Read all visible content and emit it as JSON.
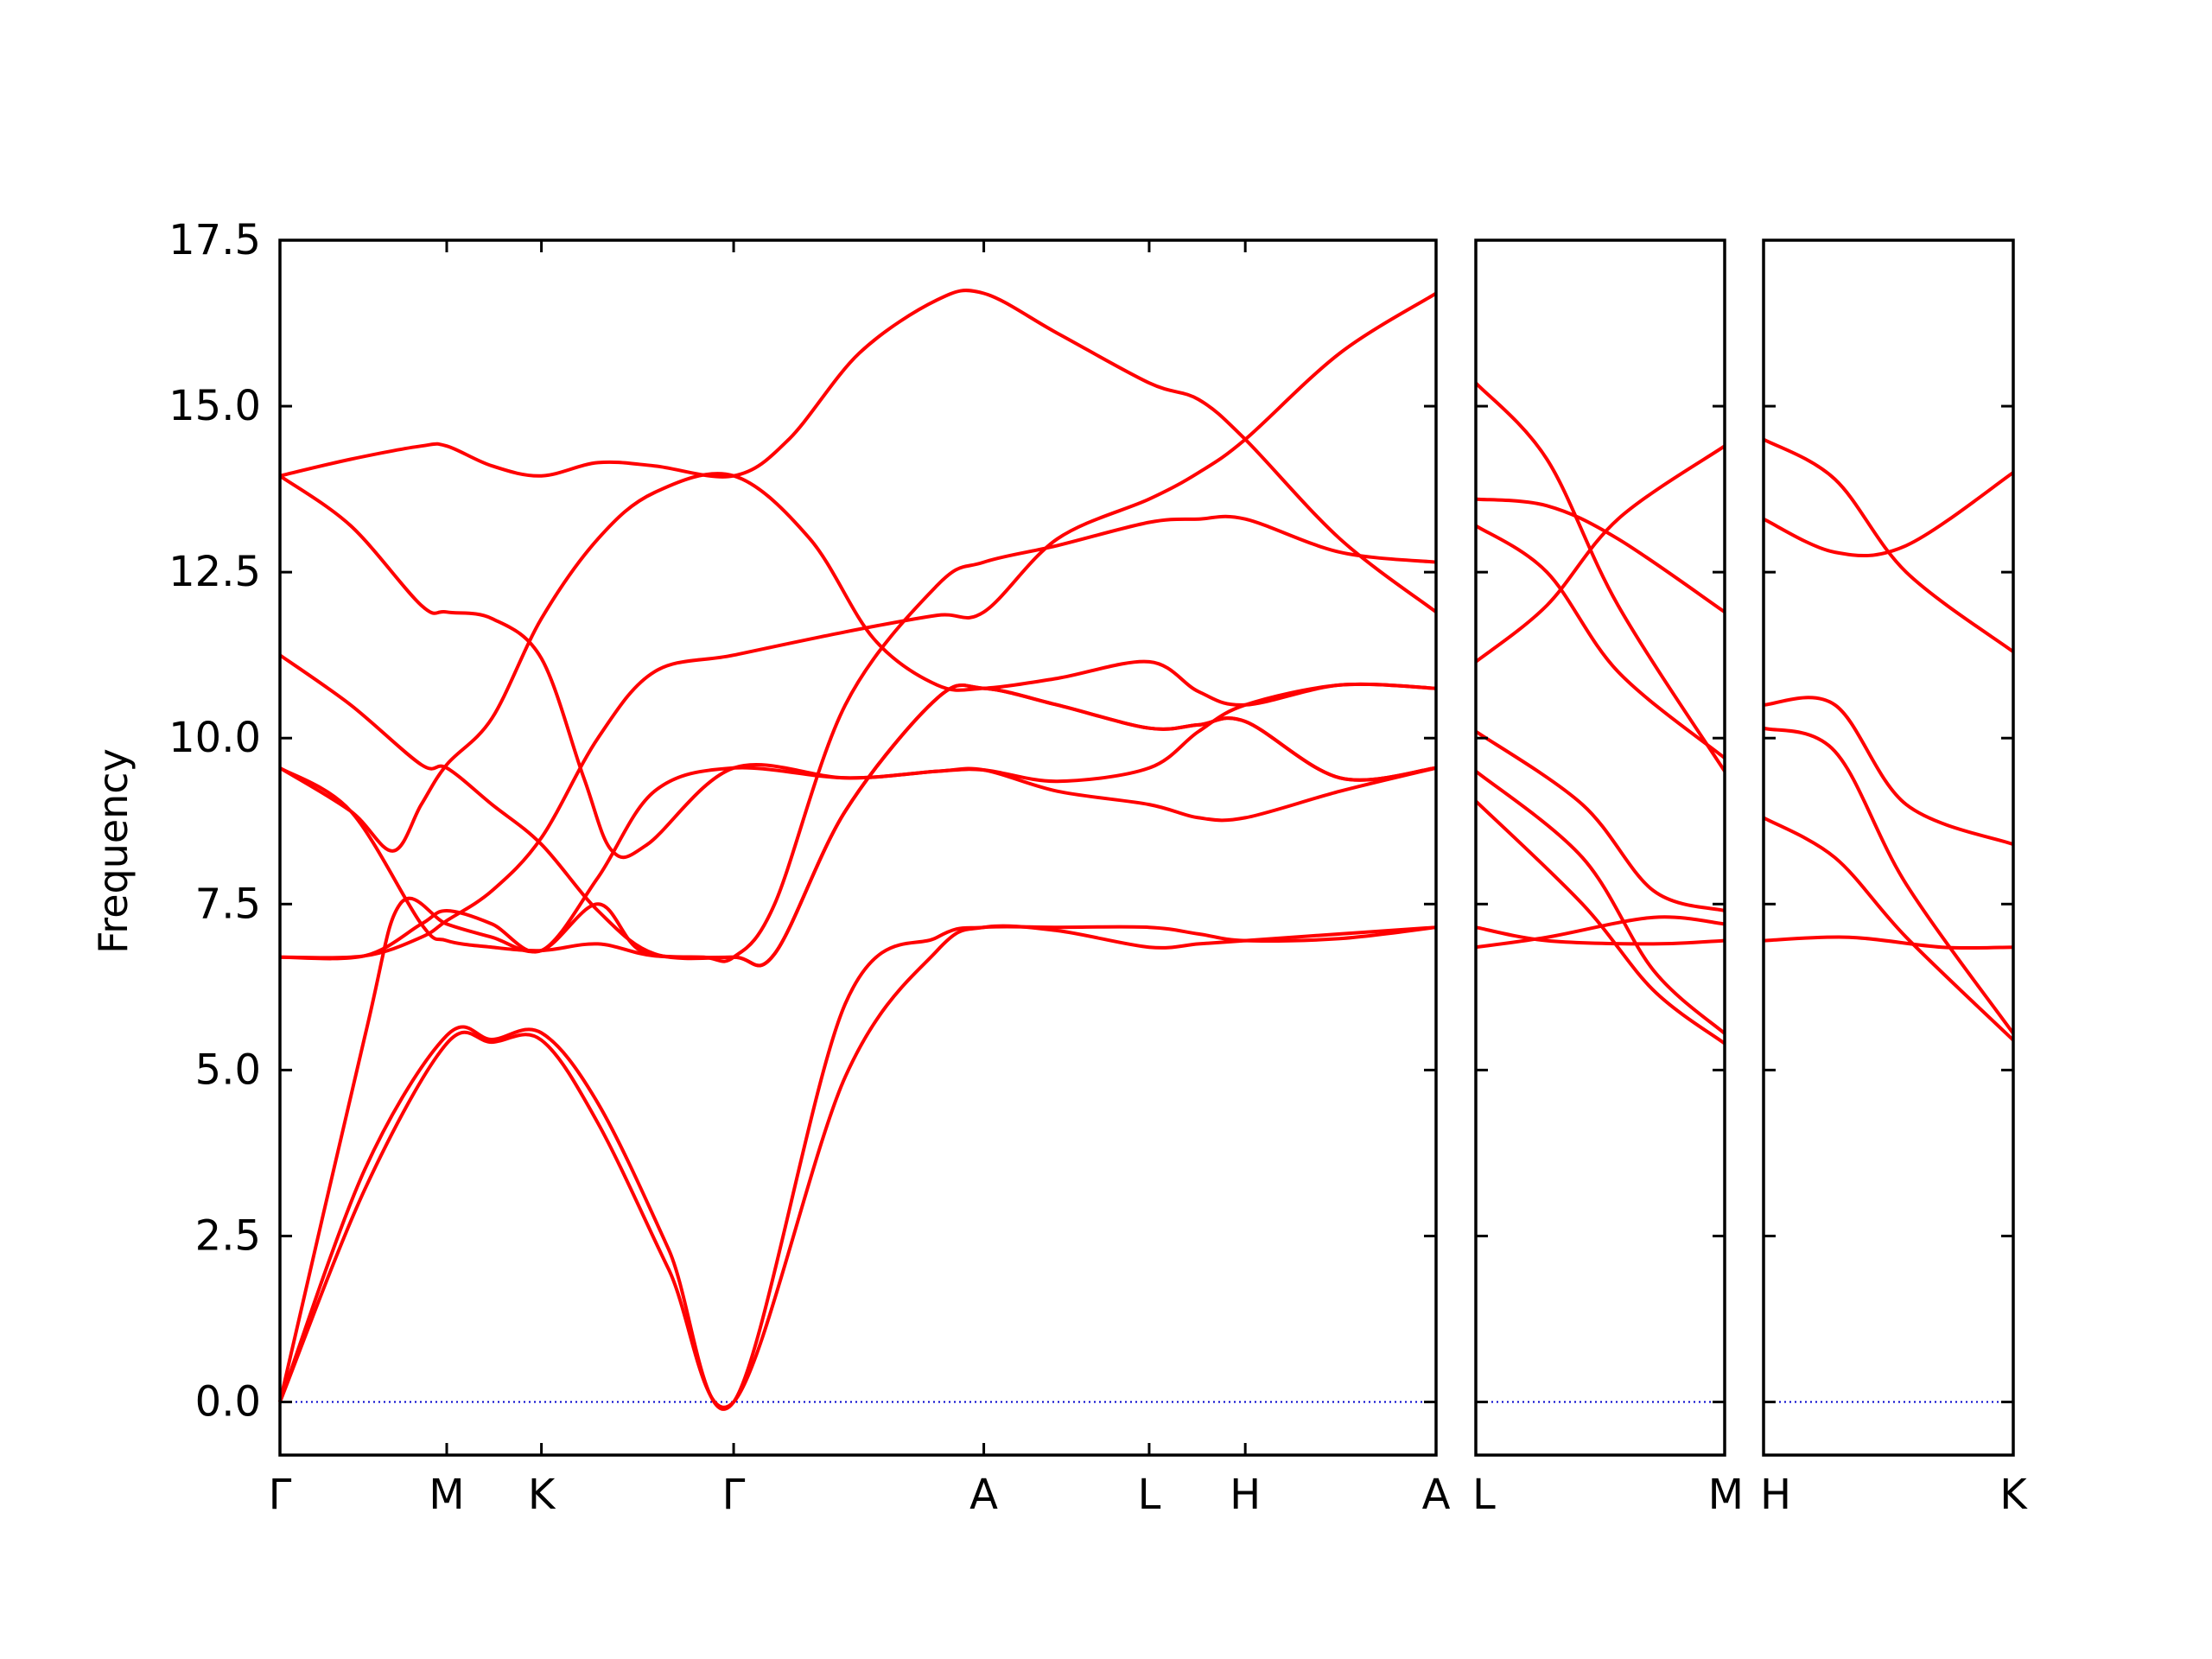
{
  "chart_data": {
    "type": "line",
    "ylabel": "Frequency",
    "ylim": [
      -0.8,
      17.5
    ],
    "yticks": [
      "0.0",
      "2.5",
      "5.0",
      "7.5",
      "10.0",
      "12.5",
      "15.0",
      "17.5"
    ],
    "ytick_values": [
      0.0,
      2.5,
      5.0,
      7.5,
      10.0,
      12.5,
      15.0,
      17.5
    ],
    "colors": {
      "bands": "#ff0000",
      "zero_line": "#0000cc"
    },
    "panels": [
      {
        "name": "Γ-M-K-Γ-A-L-H-A",
        "path_length": 16.36,
        "kpoints": [
          {
            "label": "Γ",
            "x": 0.0
          },
          {
            "label": "M",
            "x": 2.36
          },
          {
            "label": "K",
            "x": 3.7
          },
          {
            "label": "Γ",
            "x": 6.42
          },
          {
            "label": "A",
            "x": 9.96
          },
          {
            "label": "L",
            "x": 12.3
          },
          {
            "label": "H",
            "x": 13.66
          },
          {
            "label": "A",
            "x": 16.36
          }
        ],
        "bands": [
          [
            [
              0,
              0
            ],
            [
              1.2,
              3.2
            ],
            [
              2.36,
              5.4
            ],
            [
              3.0,
              5.42
            ],
            [
              3.7,
              5.45
            ],
            [
              4.5,
              4.2
            ],
            [
              5.5,
              2.0
            ],
            [
              6.42,
              0
            ],
            [
              8.0,
              4.9
            ],
            [
              9.3,
              6.8
            ],
            [
              9.96,
              7.15
            ],
            [
              11.0,
              7.1
            ],
            [
              12.3,
              6.85
            ],
            [
              13.0,
              6.9
            ],
            [
              13.66,
              6.95
            ],
            [
              15.0,
              7.05
            ],
            [
              16.36,
              7.15
            ]
          ],
          [
            [
              0,
              0
            ],
            [
              1.2,
              3.5
            ],
            [
              2.36,
              5.52
            ],
            [
              3.0,
              5.46
            ],
            [
              3.7,
              5.56
            ],
            [
              4.5,
              4.5
            ],
            [
              5.5,
              2.3
            ],
            [
              6.42,
              0
            ],
            [
              8.0,
              6.0
            ],
            [
              9.3,
              7.0
            ],
            [
              9.96,
              7.15
            ],
            [
              11.0,
              7.15
            ],
            [
              12.3,
              7.15
            ],
            [
              13.0,
              7.05
            ],
            [
              13.66,
              6.95
            ],
            [
              15.0,
              6.98
            ],
            [
              16.36,
              7.15
            ]
          ],
          [
            [
              0,
              0
            ],
            [
              1.2,
              5.5
            ],
            [
              1.7,
              7.5
            ],
            [
              2.36,
              7.2
            ],
            [
              3.0,
              7.0
            ],
            [
              3.7,
              6.8
            ],
            [
              4.5,
              7.5
            ],
            [
              5.1,
              6.8
            ],
            [
              6.0,
              6.7
            ],
            [
              6.42,
              6.7
            ],
            [
              7.0,
              7.5
            ],
            [
              8.0,
              10.5
            ],
            [
              9.3,
              12.3
            ],
            [
              9.96,
              12.65
            ],
            [
              11.0,
              12.9
            ],
            [
              12.3,
              13.25
            ],
            [
              13.0,
              13.3
            ],
            [
              13.66,
              13.3
            ],
            [
              15.0,
              12.8
            ],
            [
              16.36,
              12.65
            ]
          ],
          [
            [
              0,
              6.7
            ],
            [
              1.2,
              6.72
            ],
            [
              2.0,
              7.2
            ],
            [
              2.36,
              7.4
            ],
            [
              3.0,
              7.2
            ],
            [
              3.7,
              6.8
            ],
            [
              4.5,
              7.9
            ],
            [
              5.3,
              9.2
            ],
            [
              6.42,
              9.55
            ],
            [
              8.0,
              9.4
            ],
            [
              9.3,
              9.5
            ],
            [
              9.96,
              9.52
            ],
            [
              11.0,
              9.35
            ],
            [
              12.3,
              9.55
            ],
            [
              13.0,
              10.1
            ],
            [
              13.66,
              10.5
            ],
            [
              15.0,
              10.8
            ],
            [
              16.36,
              10.75
            ]
          ],
          [
            [
              0,
              6.7
            ],
            [
              1.2,
              6.72
            ],
            [
              2.0,
              7.0
            ],
            [
              2.36,
              7.25
            ],
            [
              3.0,
              7.7
            ],
            [
              3.7,
              8.5
            ],
            [
              4.5,
              10.0
            ],
            [
              5.3,
              11.0
            ],
            [
              6.42,
              11.25
            ],
            [
              8.0,
              11.6
            ],
            [
              9.3,
              11.85
            ],
            [
              9.96,
              11.9
            ],
            [
              11.0,
              13.0
            ],
            [
              12.3,
              13.6
            ],
            [
              13.0,
              14.0
            ],
            [
              13.66,
              14.5
            ],
            [
              15.0,
              15.8
            ],
            [
              16.36,
              16.7
            ]
          ],
          [
            [
              0,
              9.55
            ],
            [
              1.0,
              8.9
            ],
            [
              1.6,
              8.3
            ],
            [
              2.0,
              9.0
            ],
            [
              2.36,
              9.6
            ],
            [
              3.0,
              10.3
            ],
            [
              3.7,
              11.8
            ],
            [
              4.5,
              13.0
            ],
            [
              5.3,
              13.7
            ],
            [
              6.42,
              13.95
            ],
            [
              7.5,
              13.0
            ],
            [
              8.4,
              11.5
            ],
            [
              9.3,
              10.8
            ],
            [
              9.96,
              10.75
            ],
            [
              11.0,
              10.9
            ],
            [
              12.3,
              11.15
            ],
            [
              13.0,
              10.7
            ],
            [
              13.66,
              10.5
            ],
            [
              15.0,
              10.8
            ],
            [
              16.36,
              10.75
            ]
          ],
          [
            [
              0,
              9.55
            ],
            [
              1.0,
              8.9
            ],
            [
              2.0,
              7.2
            ],
            [
              2.36,
              6.95
            ],
            [
              3.0,
              6.85
            ],
            [
              3.7,
              6.8
            ],
            [
              4.5,
              6.9
            ],
            [
              5.3,
              6.72
            ],
            [
              6.42,
              6.7
            ],
            [
              7.0,
              6.75
            ],
            [
              8.0,
              8.9
            ],
            [
              9.3,
              10.6
            ],
            [
              9.96,
              10.75
            ],
            [
              11.0,
              10.5
            ],
            [
              12.3,
              10.15
            ],
            [
              13.0,
              10.2
            ],
            [
              13.66,
              10.25
            ],
            [
              15.0,
              9.4
            ],
            [
              16.36,
              9.55
            ]
          ],
          [
            [
              0,
              11.25
            ],
            [
              1.0,
              10.5
            ],
            [
              2.0,
              9.6
            ],
            [
              2.36,
              9.55
            ],
            [
              3.0,
              9.0
            ],
            [
              3.7,
              8.4
            ],
            [
              4.5,
              7.4
            ],
            [
              5.3,
              6.75
            ],
            [
              6.42,
              6.7
            ],
            [
              7.0,
              6.75
            ],
            [
              8.0,
              8.9
            ],
            [
              9.3,
              10.6
            ],
            [
              9.96,
              10.75
            ],
            [
              11.0,
              10.5
            ],
            [
              12.3,
              10.15
            ],
            [
              13.0,
              10.2
            ],
            [
              13.66,
              10.25
            ],
            [
              15.0,
              9.4
            ],
            [
              16.36,
              9.55
            ]
          ],
          [
            [
              0,
              13.95
            ],
            [
              1.0,
              13.2
            ],
            [
              2.0,
              12.0
            ],
            [
              2.36,
              11.9
            ],
            [
              3.0,
              11.8
            ],
            [
              3.7,
              11.2
            ],
            [
              4.3,
              9.4
            ],
            [
              4.7,
              8.3
            ],
            [
              5.2,
              8.4
            ],
            [
              6.42,
              9.55
            ],
            [
              8.0,
              9.4
            ],
            [
              9.3,
              9.5
            ],
            [
              9.96,
              9.52
            ],
            [
              11.0,
              9.2
            ],
            [
              12.3,
              9.0
            ],
            [
              13.0,
              8.8
            ],
            [
              13.66,
              8.8
            ],
            [
              15.0,
              9.2
            ],
            [
              16.36,
              9.55
            ]
          ],
          [
            [
              0,
              13.95
            ],
            [
              1.0,
              14.2
            ],
            [
              2.0,
              14.4
            ],
            [
              2.36,
              14.4
            ],
            [
              3.0,
              14.1
            ],
            [
              3.7,
              13.95
            ],
            [
              4.5,
              14.15
            ],
            [
              5.3,
              14.1
            ],
            [
              6.42,
              13.95
            ],
            [
              7.2,
              14.5
            ],
            [
              8.2,
              15.8
            ],
            [
              9.3,
              16.6
            ],
            [
              9.96,
              16.7
            ],
            [
              11.0,
              16.1
            ],
            [
              12.3,
              15.35
            ],
            [
              13.0,
              15.1
            ],
            [
              13.66,
              14.5
            ],
            [
              15.0,
              13.0
            ],
            [
              16.36,
              11.9
            ]
          ]
        ]
      },
      {
        "name": "L-M",
        "path_length": 3.5,
        "kpoints": [
          {
            "label": "L",
            "x": 0.0
          },
          {
            "label": "M",
            "x": 3.5
          }
        ],
        "bands": [
          [
            [
              0,
              6.85
            ],
            [
              1.0,
              7.0
            ],
            [
              2.5,
              7.3
            ],
            [
              3.5,
              7.2
            ]
          ],
          [
            [
              0,
              7.15
            ],
            [
              1.0,
              6.95
            ],
            [
              2.5,
              6.9
            ],
            [
              3.5,
              6.95
            ]
          ],
          [
            [
              0,
              9.05
            ],
            [
              1.5,
              7.5
            ],
            [
              2.5,
              6.2
            ],
            [
              3.5,
              5.4
            ]
          ],
          [
            [
              0,
              9.5
            ],
            [
              1.5,
              8.2
            ],
            [
              2.5,
              6.5
            ],
            [
              3.5,
              5.55
            ]
          ],
          [
            [
              0,
              10.1
            ],
            [
              1.5,
              9.0
            ],
            [
              2.5,
              7.7
            ],
            [
              3.5,
              7.4
            ]
          ],
          [
            [
              0,
              11.15
            ],
            [
              1.0,
              12.0
            ],
            [
              2.0,
              13.3
            ],
            [
              3.5,
              14.4
            ]
          ],
          [
            [
              0,
              13.2
            ],
            [
              1.0,
              12.5
            ],
            [
              2.0,
              11.0
            ],
            [
              3.5,
              9.7
            ]
          ],
          [
            [
              0,
              13.6
            ],
            [
              1.0,
              13.5
            ],
            [
              2.0,
              13.0
            ],
            [
              3.5,
              11.9
            ]
          ],
          [
            [
              0,
              15.35
            ],
            [
              1.0,
              14.2
            ],
            [
              2.0,
              12.0
            ],
            [
              3.5,
              9.5
            ]
          ]
        ]
      },
      {
        "name": "H-K",
        "path_length": 3.5,
        "kpoints": [
          {
            "label": "H",
            "x": 0.0
          },
          {
            "label": "K",
            "x": 3.5
          }
        ],
        "bands": [
          [
            [
              0,
              6.95
            ],
            [
              1.2,
              7.0
            ],
            [
              2.5,
              6.85
            ],
            [
              3.5,
              6.85
            ]
          ],
          [
            [
              0,
              8.8
            ],
            [
              1.0,
              8.2
            ],
            [
              2.0,
              7.0
            ],
            [
              3.5,
              5.45
            ]
          ],
          [
            [
              0,
              10.15
            ],
            [
              1.0,
              9.8
            ],
            [
              2.0,
              7.8
            ],
            [
              3.5,
              5.55
            ]
          ],
          [
            [
              0,
              10.5
            ],
            [
              1.0,
              10.5
            ],
            [
              2.0,
              9.0
            ],
            [
              3.5,
              8.4
            ]
          ],
          [
            [
              0,
              13.3
            ],
            [
              1.0,
              12.8
            ],
            [
              2.0,
              12.9
            ],
            [
              3.5,
              14.0
            ]
          ],
          [
            [
              0,
              14.5
            ],
            [
              1.0,
              13.9
            ],
            [
              2.0,
              12.5
            ],
            [
              3.5,
              11.3
            ]
          ]
        ]
      }
    ]
  }
}
